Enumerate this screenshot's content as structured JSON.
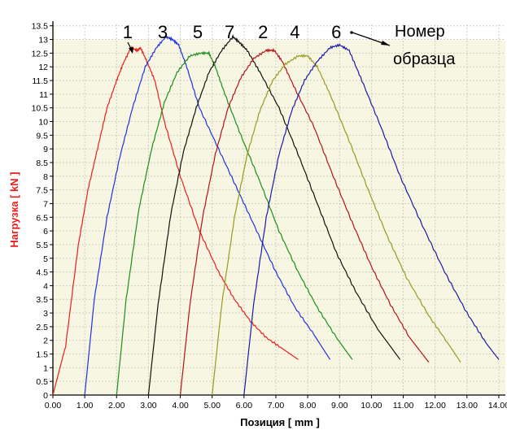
{
  "chart_data": {
    "type": "line",
    "xlabel": "Позиция [ mm ]",
    "ylabel": "Нагрузка [ kN ]",
    "xlim": [
      0,
      14.2
    ],
    "ylim": [
      0,
      13.6
    ],
    "x_ticks": [
      "0.00",
      "1.00",
      "2.00",
      "3.00",
      "4.00",
      "5.00",
      "6.00",
      "7.00",
      "8.00",
      "9.00",
      "10.00",
      "11.00",
      "12.00",
      "13.00",
      "14.00"
    ],
    "y_ticks": [
      "0",
      "0.5",
      "1",
      "1.5",
      "2",
      "2.5",
      "3",
      "3.5",
      "4",
      "4.5",
      "5",
      "5.5",
      "6",
      "6.5",
      "7",
      "7.5",
      "8",
      "8.5",
      "9",
      "9.5",
      "10",
      "10.5",
      "11",
      "11.5",
      "12",
      "12.5",
      "13",
      "13.5"
    ],
    "grid": true,
    "legend_label": "Номер образца",
    "label_positions_note": "",
    "series": [
      {
        "name": "1",
        "color": "#e8201c",
        "x": [
          0.0,
          0.4,
          0.8,
          1.1,
          1.4,
          1.7,
          2.0,
          2.2,
          2.45,
          2.65,
          2.75,
          2.95,
          3.2,
          3.5,
          4.0,
          4.6,
          5.2,
          5.7,
          6.2,
          6.7,
          7.2,
          7.7
        ],
        "y": [
          0.0,
          1.8,
          5.5,
          7.5,
          9.0,
          10.5,
          11.5,
          12.1,
          12.7,
          12.6,
          12.7,
          12.2,
          11.5,
          10.0,
          8.0,
          6.0,
          4.5,
          3.5,
          2.7,
          2.1,
          1.7,
          1.3
        ]
      },
      {
        "name": "3",
        "color": "#1e32e0",
        "x": [
          1.0,
          1.3,
          1.7,
          2.1,
          2.5,
          2.9,
          3.25,
          3.55,
          3.75,
          3.95,
          4.2,
          4.6,
          5.2,
          5.8,
          6.4,
          7.0,
          7.6,
          8.2,
          8.7
        ],
        "y": [
          0.0,
          3.5,
          6.5,
          8.7,
          10.5,
          12.0,
          12.7,
          13.1,
          13.0,
          12.8,
          12.0,
          10.5,
          9.0,
          7.5,
          6.0,
          4.5,
          3.2,
          2.2,
          1.3
        ]
      },
      {
        "name": "5",
        "color": "#1a8f1a",
        "x": [
          2.0,
          2.3,
          2.7,
          3.1,
          3.5,
          3.9,
          4.3,
          4.65,
          4.9,
          5.1,
          5.4,
          5.9,
          6.5,
          7.1,
          7.7,
          8.3,
          8.9,
          9.4
        ],
        "y": [
          0.0,
          3.5,
          6.8,
          9.0,
          10.7,
          11.8,
          12.4,
          12.5,
          12.5,
          12.0,
          11.0,
          9.5,
          7.8,
          6.0,
          4.5,
          3.2,
          2.1,
          1.3
        ]
      },
      {
        "name": "7",
        "color": "#111111",
        "x": [
          3.0,
          3.3,
          3.7,
          4.1,
          4.5,
          4.9,
          5.3,
          5.65,
          5.85,
          6.1,
          6.5,
          7.1,
          7.7,
          8.3,
          8.9,
          9.5,
          10.2,
          10.9
        ],
        "y": [
          0.0,
          3.3,
          6.6,
          8.9,
          10.5,
          11.8,
          12.6,
          13.1,
          12.9,
          12.6,
          11.8,
          10.5,
          8.8,
          7.0,
          5.2,
          3.8,
          2.4,
          1.3
        ]
      },
      {
        "name": "2",
        "color": "#b5121b",
        "x": [
          4.0,
          4.3,
          4.7,
          5.1,
          5.5,
          5.9,
          6.3,
          6.7,
          6.95,
          7.2,
          7.6,
          8.2,
          8.8,
          9.4,
          10.0,
          10.6,
          11.2,
          11.8
        ],
        "y": [
          0.0,
          3.3,
          6.5,
          8.8,
          10.5,
          11.6,
          12.3,
          12.6,
          12.6,
          12.2,
          11.2,
          9.8,
          8.0,
          6.3,
          4.7,
          3.3,
          2.1,
          1.2
        ]
      },
      {
        "name": "4",
        "color": "#9a9a1e",
        "x": [
          5.0,
          5.3,
          5.7,
          6.1,
          6.5,
          6.9,
          7.3,
          7.7,
          8.0,
          8.3,
          8.7,
          9.3,
          9.9,
          10.5,
          11.1,
          11.8,
          12.4,
          12.8
        ],
        "y": [
          0.0,
          3.3,
          6.5,
          8.8,
          10.4,
          11.5,
          12.1,
          12.4,
          12.4,
          12.0,
          11.0,
          9.3,
          7.5,
          5.8,
          4.3,
          2.9,
          1.9,
          1.2
        ]
      },
      {
        "name": "6",
        "color": "#1a1aa8",
        "x": [
          6.0,
          6.3,
          6.7,
          7.1,
          7.5,
          7.9,
          8.3,
          8.7,
          9.0,
          9.3,
          9.7,
          10.3,
          10.9,
          11.6,
          12.3,
          13.0,
          13.6,
          14.0
        ],
        "y": [
          0.0,
          3.3,
          6.5,
          8.8,
          10.4,
          11.5,
          12.2,
          12.7,
          12.8,
          12.6,
          11.5,
          9.8,
          8.0,
          6.2,
          4.5,
          3.0,
          1.9,
          1.3
        ]
      }
    ]
  }
}
